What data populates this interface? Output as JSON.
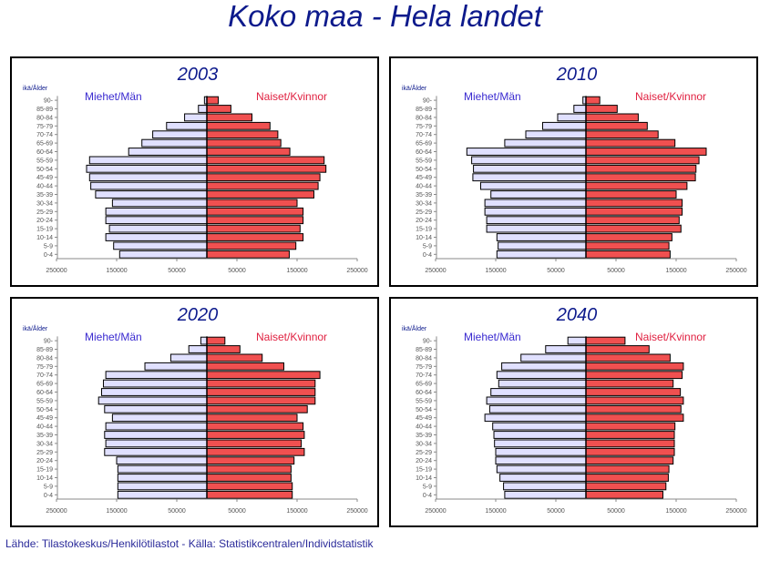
{
  "title": "Koko maa  -  Hela landet",
  "source": "Lähde: Tilastokeskus/Henkilötilastot  -  Källa: Statistikcentralen/Individstatistik",
  "colors": {
    "men_fill": "#e0e0ff",
    "women_fill": "#f05050",
    "title": "#0d1a8c",
    "men_label": "#3a2ad0",
    "women_label": "#e02040"
  },
  "chart_data": [
    {
      "type": "bar",
      "title": "2003",
      "age_label": "ikä/Ålder",
      "men_label": "Miehet/Män",
      "women_label": "Naiset/Kvinnor",
      "xlim": [
        -250000,
        250000
      ],
      "xticks": [
        "250000",
        "150000",
        "50000",
        "50000",
        "150000",
        "250000"
      ],
      "categories": [
        "0-4",
        "5-9",
        "10-14",
        "15-19",
        "20-24",
        "25-29",
        "30-34",
        "35-39",
        "40-44",
        "45-49",
        "50-54",
        "55-59",
        "60-64",
        "65-69",
        "70-74",
        "75-79",
        "80-84",
        "85-89",
        "90-"
      ],
      "series": [
        {
          "name": "Miehet/Män",
          "values": [
            145000,
            155000,
            168000,
            162000,
            168000,
            168000,
            157000,
            185000,
            193000,
            195000,
            200000,
            195000,
            130000,
            108000,
            90000,
            67000,
            37000,
            14000,
            4000
          ]
        },
        {
          "name": "Naiset/Kvinnor",
          "values": [
            137000,
            148000,
            160000,
            155000,
            160000,
            160000,
            150000,
            178000,
            185000,
            188000,
            198000,
            195000,
            138000,
            123000,
            118000,
            105000,
            75000,
            40000,
            19000
          ]
        }
      ]
    },
    {
      "type": "bar",
      "title": "2010",
      "age_label": "ikä/Ålder",
      "men_label": "Miehet/Män",
      "women_label": "Naiset/Kvinnor",
      "xlim": [
        -250000,
        250000
      ],
      "xticks": [
        "250000",
        "150000",
        "50000",
        "50000",
        "150000",
        "250000"
      ],
      "categories": [
        "0-4",
        "5-9",
        "10-14",
        "15-19",
        "20-24",
        "25-29",
        "30-34",
        "35-39",
        "40-44",
        "45-49",
        "50-54",
        "55-59",
        "60-64",
        "65-69",
        "70-74",
        "75-79",
        "80-84",
        "85-89",
        "90-"
      ],
      "series": [
        {
          "name": "Miehet/Män",
          "values": [
            148000,
            146000,
            148000,
            165000,
            165000,
            168000,
            168000,
            158000,
            175000,
            188000,
            187000,
            190000,
            198000,
            135000,
            100000,
            72000,
            47000,
            20000,
            5000
          ]
        },
        {
          "name": "Naiset/Kvinnor",
          "values": [
            140000,
            138000,
            143000,
            158000,
            155000,
            160000,
            160000,
            150000,
            168000,
            182000,
            183000,
            188000,
            200000,
            148000,
            120000,
            102000,
            87000,
            52000,
            23000
          ]
        }
      ]
    },
    {
      "type": "bar",
      "title": "2020",
      "age_label": "ikä/Ålder",
      "men_label": "Miehet/Män",
      "women_label": "Naiset/Kvinnor",
      "xlim": [
        -250000,
        250000
      ],
      "xticks": [
        "250000",
        "150000",
        "50000",
        "50000",
        "150000",
        "250000"
      ],
      "categories": [
        "0-4",
        "5-9",
        "10-14",
        "15-19",
        "20-24",
        "25-29",
        "30-34",
        "35-39",
        "40-44",
        "45-49",
        "50-54",
        "55-59",
        "60-64",
        "65-69",
        "70-74",
        "75-79",
        "80-84",
        "85-89",
        "90-"
      ],
      "series": [
        {
          "name": "Miehet/Män",
          "values": [
            148000,
            148000,
            148000,
            148000,
            150000,
            170000,
            168000,
            170000,
            168000,
            157000,
            170000,
            180000,
            175000,
            172000,
            168000,
            103000,
            60000,
            30000,
            10000
          ]
        },
        {
          "name": "Naiset/Kvinnor",
          "values": [
            142000,
            142000,
            140000,
            140000,
            145000,
            162000,
            157000,
            162000,
            160000,
            150000,
            167000,
            180000,
            180000,
            180000,
            188000,
            128000,
            92000,
            55000,
            30000
          ]
        }
      ]
    },
    {
      "type": "bar",
      "title": "2040",
      "age_label": "ikä/Ålder",
      "men_label": "Miehet/Män",
      "women_label": "Naiset/Kvinnor",
      "xlim": [
        -250000,
        250000
      ],
      "xticks": [
        "250000",
        "150000",
        "50000",
        "50000",
        "150000",
        "250000"
      ],
      "categories": [
        "0-4",
        "5-9",
        "10-14",
        "15-19",
        "20-24",
        "25-29",
        "30-34",
        "35-39",
        "40-44",
        "45-49",
        "50-54",
        "55-59",
        "60-64",
        "65-69",
        "70-74",
        "75-79",
        "80-84",
        "85-89",
        "90-"
      ],
      "series": [
        {
          "name": "Miehet/Män",
          "values": [
            135000,
            137000,
            143000,
            148000,
            150000,
            150000,
            152000,
            153000,
            155000,
            168000,
            160000,
            165000,
            158000,
            145000,
            148000,
            140000,
            108000,
            67000,
            30000
          ]
        },
        {
          "name": "Naiset/Kvinnor",
          "values": [
            128000,
            133000,
            137000,
            138000,
            145000,
            147000,
            147000,
            147000,
            148000,
            162000,
            158000,
            162000,
            157000,
            145000,
            160000,
            162000,
            140000,
            105000,
            65000
          ]
        }
      ]
    }
  ]
}
